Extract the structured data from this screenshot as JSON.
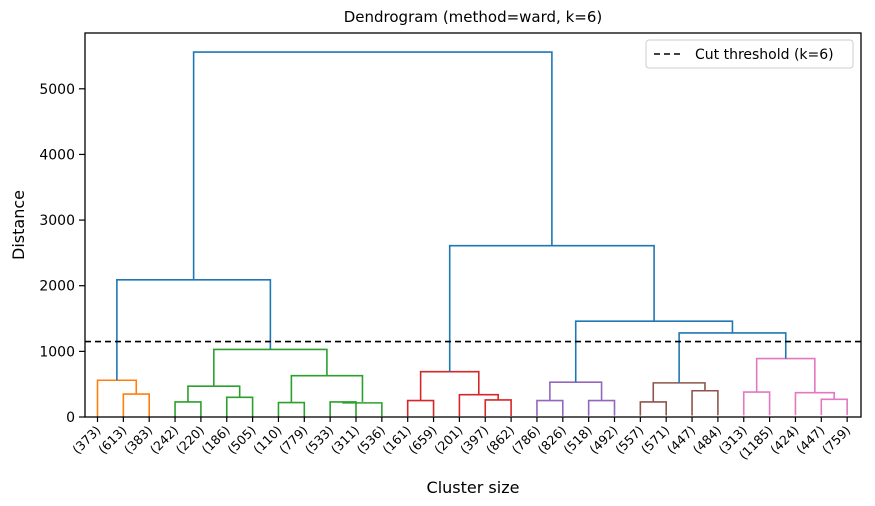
{
  "chart_data": {
    "type": "dendrogram",
    "title": "Dendrogram (method=ward, k=6)",
    "xlabel": "Cluster size",
    "ylabel": "Distance",
    "ylim": [
      0,
      5850
    ],
    "yticks": [
      0,
      1000,
      2000,
      3000,
      4000,
      5000
    ],
    "leaf_labels": [
      "(373)",
      "(613)",
      "(383)",
      "(242)",
      "(220)",
      "(186)",
      "(505)",
      "(110)",
      "(779)",
      "(533)",
      "(311)",
      "(536)",
      "(161)",
      "(659)",
      "(201)",
      "(397)",
      "(862)",
      "(786)",
      "(826)",
      "(518)",
      "(492)",
      "(557)",
      "(571)",
      "(447)",
      "(484)",
      "(313)",
      "(1185)",
      "(424)",
      "(447)",
      "(759)"
    ],
    "cut_threshold": 1150,
    "legend": {
      "label": "Cut threshold (k=6)",
      "placement": "top-right"
    },
    "cluster_colors": [
      "#ff7f0e",
      "#2ca02c",
      "#d62728",
      "#9467bd",
      "#8c564b",
      "#e377c2"
    ],
    "above_cut_color": "#1f77b4",
    "merges": [
      {
        "left": [
          1,
          1
        ],
        "right": [
          2,
          2
        ],
        "height": 350,
        "color": "#ff7f0e"
      },
      {
        "left": [
          0,
          0
        ],
        "right": [
          1.5,
          350
        ],
        "height": 560,
        "color": "#ff7f0e"
      },
      {
        "left": [
          3,
          3
        ],
        "right": [
          4,
          4
        ],
        "height": 230,
        "color": "#2ca02c"
      },
      {
        "left": [
          5,
          5
        ],
        "right": [
          6,
          6
        ],
        "height": 300,
        "color": "#2ca02c"
      },
      {
        "left": [
          3.5,
          230
        ],
        "right": [
          5.5,
          300
        ],
        "height": 470,
        "color": "#2ca02c"
      },
      {
        "left": [
          7,
          7
        ],
        "right": [
          8,
          8
        ],
        "height": 220,
        "color": "#2ca02c"
      },
      {
        "left": [
          9,
          9
        ],
        "right": [
          10,
          10
        ],
        "height": 230,
        "color": "#2ca02c"
      },
      {
        "left": [
          9.5,
          230
        ],
        "right": [
          11,
          11
        ],
        "height": 215,
        "color": "#2ca02c"
      },
      {
        "left": [
          7.5,
          220
        ],
        "right": [
          10.25,
          230
        ],
        "height": 630,
        "color": "#2ca02c"
      },
      {
        "left": [
          4.5,
          470
        ],
        "right": [
          8.875,
          630
        ],
        "height": 1030,
        "color": "#2ca02c"
      },
      {
        "left": [
          12,
          12
        ],
        "right": [
          13,
          13
        ],
        "height": 250,
        "color": "#d62728"
      },
      {
        "left": [
          15,
          15
        ],
        "right": [
          16,
          16
        ],
        "height": 260,
        "color": "#d62728"
      },
      {
        "left": [
          14,
          14
        ],
        "right": [
          15.5,
          260
        ],
        "height": 340,
        "color": "#d62728"
      },
      {
        "left": [
          12.5,
          250
        ],
        "right": [
          14.75,
          340
        ],
        "height": 690,
        "color": "#d62728"
      },
      {
        "left": [
          17,
          17
        ],
        "right": [
          18,
          18
        ],
        "height": 250,
        "color": "#9467bd"
      },
      {
        "left": [
          19,
          19
        ],
        "right": [
          20,
          20
        ],
        "height": 250,
        "color": "#9467bd"
      },
      {
        "left": [
          17.5,
          250
        ],
        "right": [
          19.5,
          250
        ],
        "height": 530,
        "color": "#9467bd"
      },
      {
        "left": [
          21,
          21
        ],
        "right": [
          22,
          22
        ],
        "height": 230,
        "color": "#8c564b"
      },
      {
        "left": [
          23,
          23
        ],
        "right": [
          24,
          24
        ],
        "height": 400,
        "color": "#8c564b"
      },
      {
        "left": [
          21.5,
          230
        ],
        "right": [
          23.5,
          400
        ],
        "height": 520,
        "color": "#8c564b"
      },
      {
        "left": [
          25,
          25
        ],
        "right": [
          26,
          26
        ],
        "height": 380,
        "color": "#e377c2"
      },
      {
        "left": [
          28,
          28
        ],
        "right": [
          29,
          29
        ],
        "height": 270,
        "color": "#e377c2"
      },
      {
        "left": [
          27,
          27
        ],
        "right": [
          28.5,
          270
        ],
        "height": 370,
        "color": "#e377c2"
      },
      {
        "left": [
          25.5,
          380
        ],
        "right": [
          27.75,
          370
        ],
        "height": 890,
        "color": "#e377c2"
      },
      {
        "left": [
          0.75,
          560
        ],
        "right": [
          6.6875,
          1030
        ],
        "height": 2090,
        "color": "#1f77b4"
      },
      {
        "left": [
          22.5,
          520
        ],
        "right": [
          26.625,
          890
        ],
        "height": 1280,
        "color": "#1f77b4"
      },
      {
        "left": [
          18.5,
          530
        ],
        "right": [
          24.5625,
          1280
        ],
        "height": 1460,
        "color": "#1f77b4"
      },
      {
        "left": [
          13.625,
          690
        ],
        "right": [
          21.53125,
          1460
        ],
        "height": 2610,
        "color": "#1f77b4"
      },
      {
        "left": [
          3.71875,
          2090
        ],
        "right": [
          17.578125,
          2610
        ],
        "height": 5560,
        "color": "#1f77b4"
      }
    ]
  }
}
